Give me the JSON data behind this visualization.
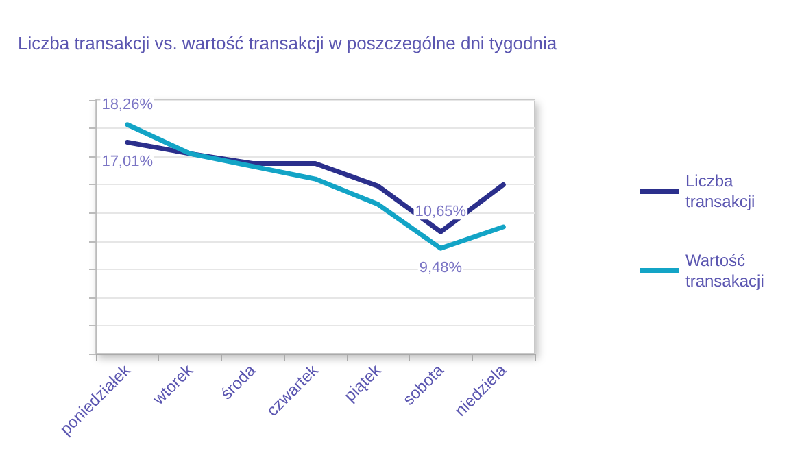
{
  "chart_data": {
    "type": "line",
    "title": "Liczba transakcji vs. wartość transakcji w poszczególne dni tygodnia",
    "categories": [
      "poniedziałek",
      "wtorek",
      "środa",
      "czwartek",
      "piątek",
      "sobota",
      "niedziela"
    ],
    "series": [
      {
        "name": "Liczba transakcji",
        "color": "#2b2f8c",
        "values": [
          17.01,
          16.2,
          15.5,
          15.5,
          13.9,
          10.65,
          14.0
        ],
        "value_labels": [
          "17,01%",
          null,
          null,
          null,
          null,
          "10,65%",
          null
        ]
      },
      {
        "name": "Wartość transakacji",
        "color": "#13a4c6",
        "values": [
          18.26,
          16.2,
          15.3,
          14.4,
          12.6,
          9.48,
          11.0
        ],
        "value_labels": [
          "18,26%",
          null,
          null,
          null,
          null,
          "9,48%",
          null
        ]
      }
    ],
    "ylim": [
      2,
      20
    ],
    "yticks": [
      {
        "value": 2,
        "label": null
      },
      {
        "value": 4,
        "label": null
      },
      {
        "value": 6,
        "label": null
      },
      {
        "value": 8,
        "label": null
      },
      {
        "value": 10,
        "label": null
      },
      {
        "value": 12,
        "label": null
      },
      {
        "value": 14,
        "label": null
      },
      {
        "value": 16,
        "label": null
      },
      {
        "value": 18,
        "label": null
      },
      {
        "value": 20,
        "label": null
      }
    ],
    "grid": "y",
    "legend": "right",
    "marker": "none",
    "line_style": "solid",
    "tick_labels": "x"
  }
}
